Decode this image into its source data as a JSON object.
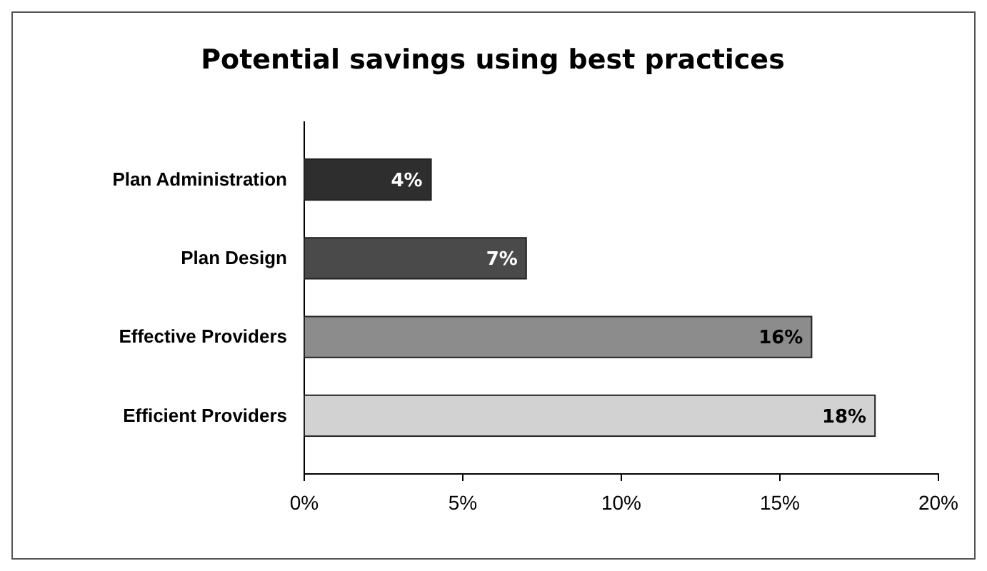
{
  "chart_data": {
    "type": "bar",
    "orientation": "horizontal",
    "title": "Potential savings using best practices",
    "categories": [
      "Plan Administration",
      "Plan Design",
      "Effective Providers",
      "Efficient Providers"
    ],
    "values": [
      4,
      7,
      16,
      18
    ],
    "colors": [
      "#2e2e2e",
      "#4a4a4a",
      "#8c8c8c",
      "#d2d2d2"
    ],
    "value_labels": [
      "4%",
      "7%",
      "16%",
      "18%"
    ],
    "xlim": [
      0,
      20
    ],
    "xticks": [
      {
        "value": 0,
        "label": "0%"
      },
      {
        "value": 5,
        "label": "5%"
      },
      {
        "value": 10,
        "label": "10%"
      },
      {
        "value": 15,
        "label": "15%"
      },
      {
        "value": 20,
        "label": "20%"
      }
    ],
    "grid": false
  }
}
